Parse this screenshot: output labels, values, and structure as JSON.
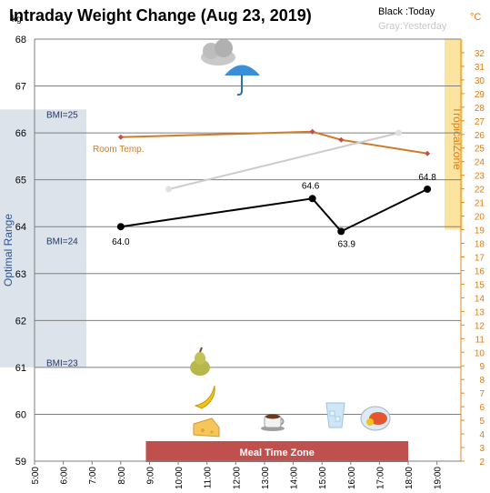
{
  "chart_data": {
    "type": "line",
    "title": "Intraday Weight Change (Aug 23, 2019)",
    "legend": {
      "today": "Black :Today",
      "yesterday": "Gray:Yesterday",
      "placement": "top-right"
    },
    "left_axis": {
      "unit_label": "kg",
      "ylim": [
        59,
        68
      ],
      "ticks": [
        59,
        60,
        61,
        62,
        63,
        64,
        65,
        66,
        67,
        68
      ],
      "grid": true
    },
    "right_axis": {
      "unit_label": "°C",
      "ylim": [
        2,
        33
      ],
      "ticks": [
        2,
        3,
        4,
        5,
        6,
        7,
        8,
        9,
        10,
        11,
        12,
        13,
        14,
        15,
        16,
        17,
        18,
        19,
        20,
        21,
        22,
        23,
        24,
        25,
        26,
        27,
        28,
        29,
        30,
        31,
        32
      ]
    },
    "x_axis": {
      "xlim": [
        "5:00",
        "19:50"
      ],
      "tick_labels": [
        "5:00",
        "6:00",
        "7:00",
        "8:00",
        "9:00",
        "10:00",
        "11:00",
        "12:00",
        "13:00",
        "14:00",
        "15:00",
        "16:00",
        "17:00",
        "18:00",
        "19:00"
      ]
    },
    "series": [
      {
        "name": "Today",
        "color": "#000000",
        "axis": "kg",
        "x": [
          "8:00",
          "14:40",
          "15:40",
          "18:40"
        ],
        "y": [
          64.0,
          64.6,
          63.9,
          64.8
        ],
        "labels": [
          "64.0",
          "64.6",
          "63.9",
          "64.8"
        ]
      },
      {
        "name": "Yesterday",
        "color": "#cccccc",
        "axis": "kg",
        "x": [
          "9:40",
          "17:40"
        ],
        "y": [
          64.8,
          66.0
        ]
      },
      {
        "name": "Room Temp.",
        "color": "#d07a2a",
        "axis": "°C",
        "x": [
          "8:00",
          "14:40",
          "15:40",
          "18:40"
        ],
        "y": [
          25.8,
          26.2,
          25.6,
          24.6
        ]
      }
    ],
    "bands": {
      "optimal_range": {
        "label": "Optimal Range",
        "kg_range": [
          61.0,
          66.5
        ],
        "color": "#dde3ea",
        "bmi_labels": [
          {
            "text": "BMI=25",
            "kg": 66.4
          },
          {
            "text": "BMI=24",
            "kg": 63.7
          },
          {
            "text": "BMI=23",
            "kg": 61.1
          }
        ]
      },
      "tropical_zone": {
        "label": "TropicalZone",
        "temp_range": [
          19,
          33
        ],
        "color": "#fbe3a0"
      },
      "meal_time_zone": {
        "label": "Meal Time Zone",
        "x_range": [
          "9:00",
          "18:00"
        ],
        "color": "#c0504d"
      }
    },
    "icons": [
      {
        "name": "cloud-icon"
      },
      {
        "name": "umbrella-icon"
      },
      {
        "name": "pear-icon"
      },
      {
        "name": "banana-icon"
      },
      {
        "name": "cheese-icon"
      },
      {
        "name": "coffee-icon"
      },
      {
        "name": "water-glass-icon"
      },
      {
        "name": "meal-plate-icon"
      }
    ]
  }
}
